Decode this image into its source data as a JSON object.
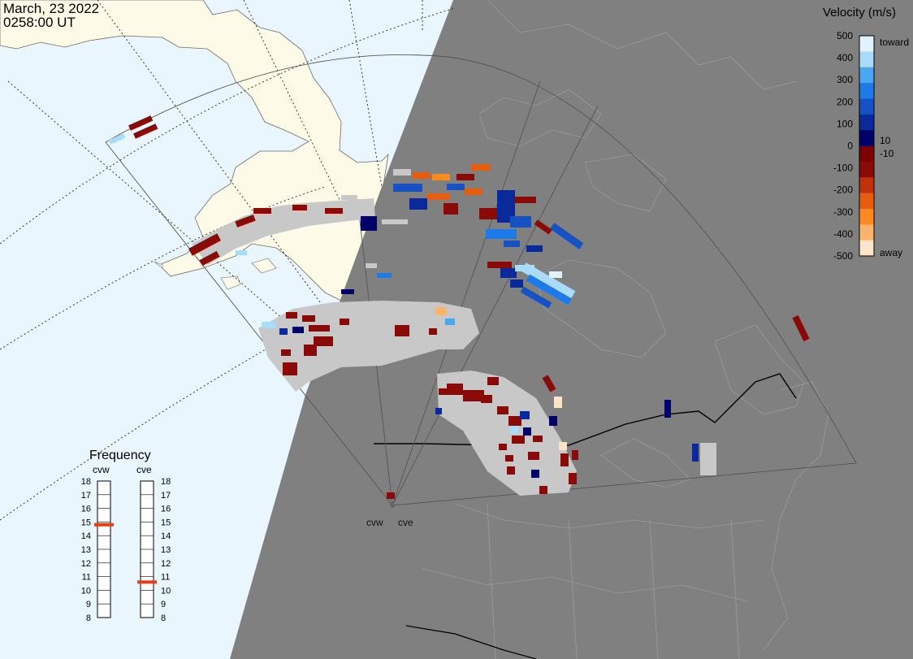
{
  "header": {
    "date": "March, 23 2022",
    "time": "0258:00 UT"
  },
  "colorbar": {
    "title": "Velocity (m/s)",
    "ticks": [
      "500",
      "400",
      "300",
      "200",
      "100",
      "10",
      "0",
      "-10",
      "-100",
      "-200",
      "-300",
      "-400",
      "-500"
    ],
    "toward_label": "toward",
    "away_label": "away",
    "colors": [
      "#fde4c8",
      "#fdb36a",
      "#fb8a1f",
      "#e85c0e",
      "#c0300a",
      "#8a0a08",
      "#7a0000",
      "#00006a",
      "#0a2a9c",
      "#1652c4",
      "#1e7ae8",
      "#4aa8f2",
      "#a8dcfa",
      "#dff2fe"
    ]
  },
  "frequency": {
    "title": "Frequency",
    "radars": [
      "cvw",
      "cve"
    ],
    "ticks": [
      "18",
      "17",
      "16",
      "15",
      "14",
      "13",
      "12",
      "11",
      "10",
      "9",
      "8"
    ],
    "cvw_mhz": 14.8,
    "cve_mhz": 10.6,
    "marker_color": "#e63c10"
  },
  "radars": {
    "west": "cvw",
    "east": "cve"
  },
  "map_colors": {
    "ocean": "#eaf6fd",
    "land_day": "#fdfbe8",
    "night": "#808080",
    "ground_scatter": "#c8c8c8"
  }
}
